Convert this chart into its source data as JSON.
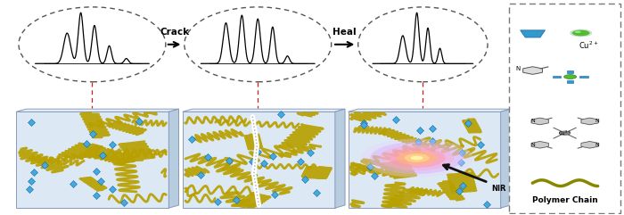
{
  "fig_width": 7.0,
  "fig_height": 2.41,
  "dpi": 100,
  "bg_color": "#ffffff",
  "arrow1_label": "Crack",
  "arrow2_label": "Heal",
  "legend_title": "Polymer Chain",
  "cu_label": "Cu²⁺",
  "nir_label": "NIR",
  "box_face": "#dce9f5",
  "box_top": "#e8f2fa",
  "box_side": "#b8ccdf",
  "box_edge": "#8899bb",
  "chain_color": "#b8a000",
  "crosslink_color": "#44aadd"
}
